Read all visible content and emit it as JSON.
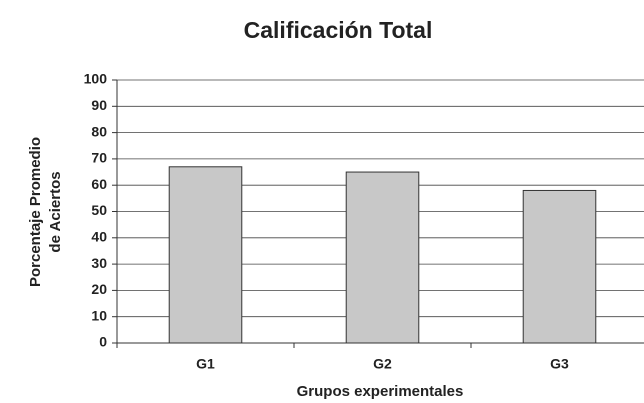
{
  "chart_data": {
    "type": "bar",
    "title": "Calificación Total",
    "x_label": "Grupos experimentales",
    "y_label": [
      "Porcentaje Promedio",
      "de Aciertos"
    ],
    "categories": [
      "G1",
      "G2",
      "G3"
    ],
    "values": [
      67,
      65,
      58
    ],
    "color": "#c8c8c8",
    "ylim": [
      0,
      100
    ],
    "yticks": [
      0,
      10,
      20,
      30,
      40,
      50,
      60,
      70,
      80,
      90,
      100
    ],
    "grid": true
  }
}
